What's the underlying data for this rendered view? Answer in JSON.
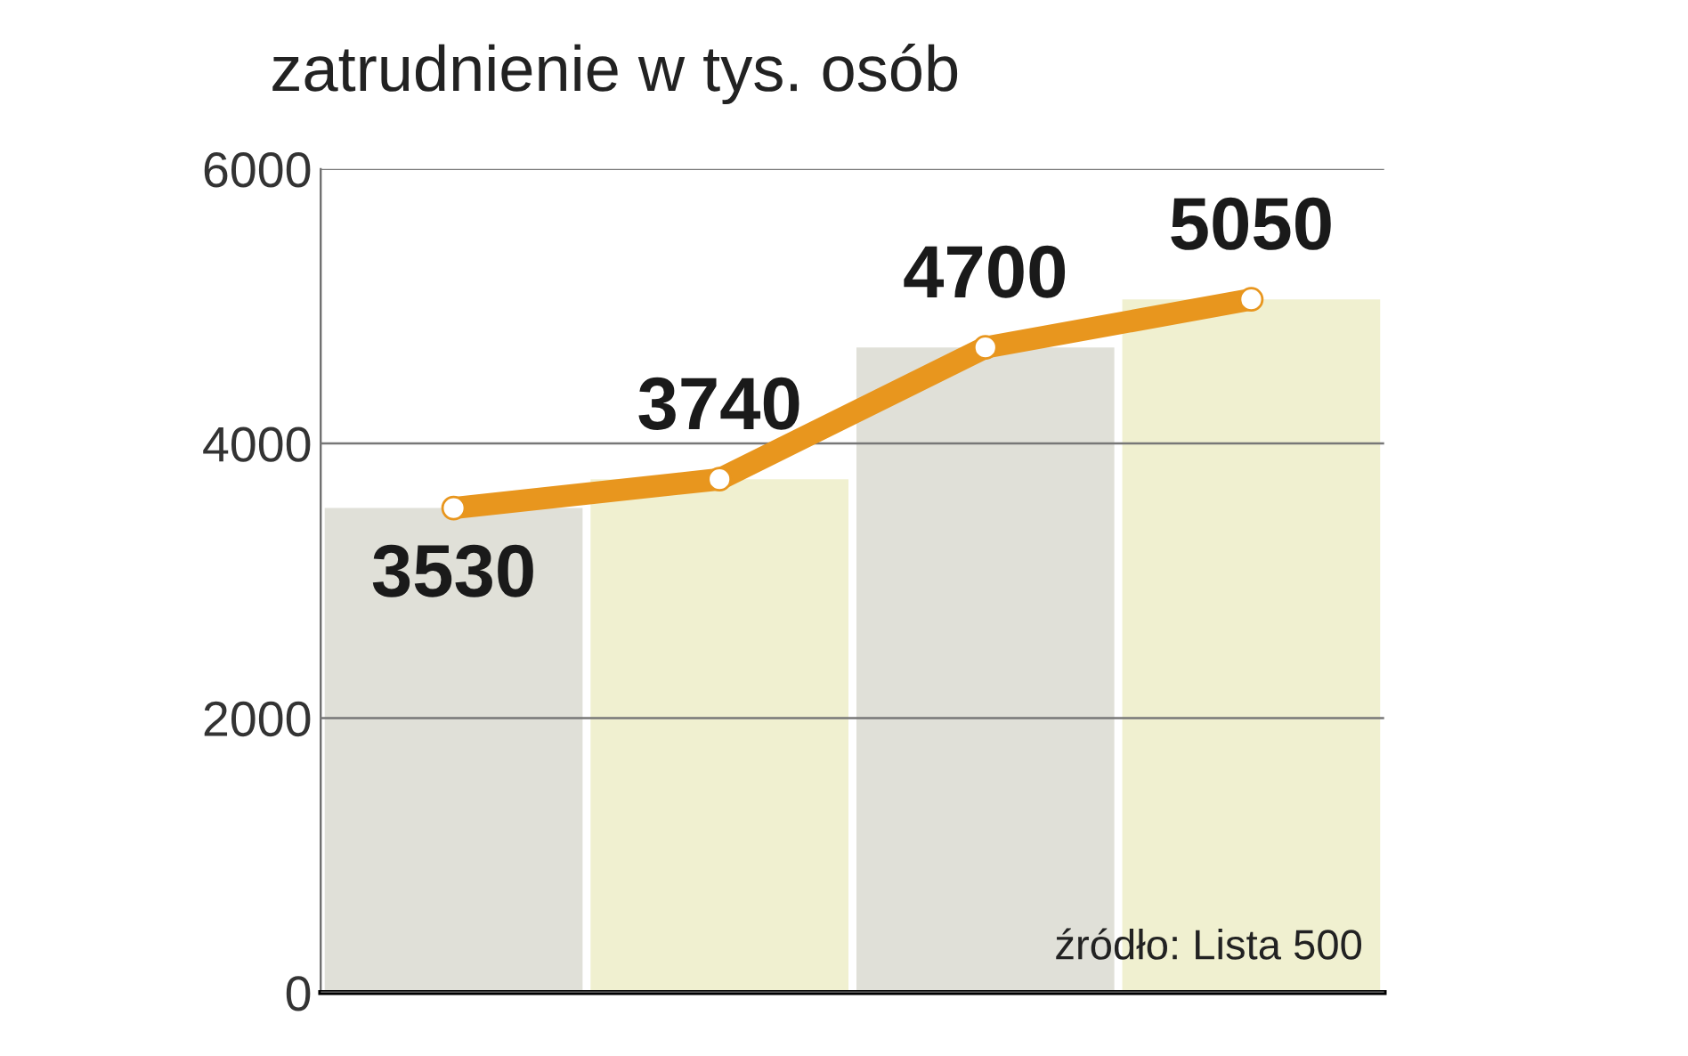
{
  "chart_data": {
    "type": "bar",
    "title": "zatrudnienie w tys. osób",
    "categories": [
      null,
      null,
      null,
      null
    ],
    "series": [
      {
        "colors": [
          "#e0e0d8",
          "#f0f0d0",
          "#e0e0d8",
          "#f0f0d0"
        ],
        "values": [
          3530,
          3740,
          4700,
          5050
        ]
      },
      {
        "type": "line",
        "color": "#e8961e",
        "values": [
          3530,
          3740,
          4700,
          5050
        ],
        "marker": "circle",
        "data_labels": true
      }
    ],
    "ylim": [
      0,
      6000
    ],
    "yticks": [
      0,
      2000,
      4000,
      6000
    ],
    "grid": "y",
    "annotations": [
      "źródło: Lista 500"
    ]
  }
}
